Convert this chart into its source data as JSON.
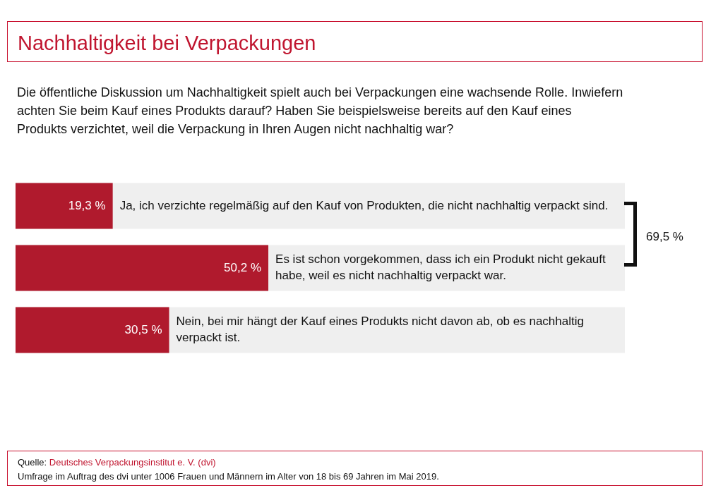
{
  "chart_data": {
    "type": "bar",
    "orientation": "horizontal",
    "title": "Nachhaltigkeit bei Verpackungen",
    "subtitle": "Die öffentliche Diskussion um Nachhaltigkeit spielt auch bei Verpackungen eine wachsende Rolle. Inwiefern achten Sie beim Kauf eines Produkts darauf? Haben Sie beispielsweise bereits auf den Kauf eines Produkts verzichtet, weil die Verpackung in Ihren Augen nicht nachhaltig war?",
    "categories": [
      "Ja, ich verzichte regelmäßig auf den Kauf von Produkten, die nicht nachhaltig verpackt sind.",
      "Es ist schon vorgekommen, dass ich ein Produkt nicht gekauft habe, weil es nicht nachhaltig verpackt war.",
      "Nein, bei mir hängt der Kauf eines Produkts nicht davon ab, ob es nachhaltig verpackt ist."
    ],
    "values": [
      19.3,
      50.2,
      30.5
    ],
    "value_labels": [
      "19,3 %",
      "50,2 %",
      "30,5 %"
    ],
    "color": "#b01a2d",
    "xlim": [
      0,
      121
    ],
    "tick_labels": false,
    "annotations": [
      "69,5 %",
      "Quelle: Deutsches Verpackungsinstitut e. V. (dvi)",
      "Umfrage im Auftrag des dvi unter 1006 Frauen und Männern im Alter von 18 bis 69 Jahren im Mai 2019."
    ]
  }
}
